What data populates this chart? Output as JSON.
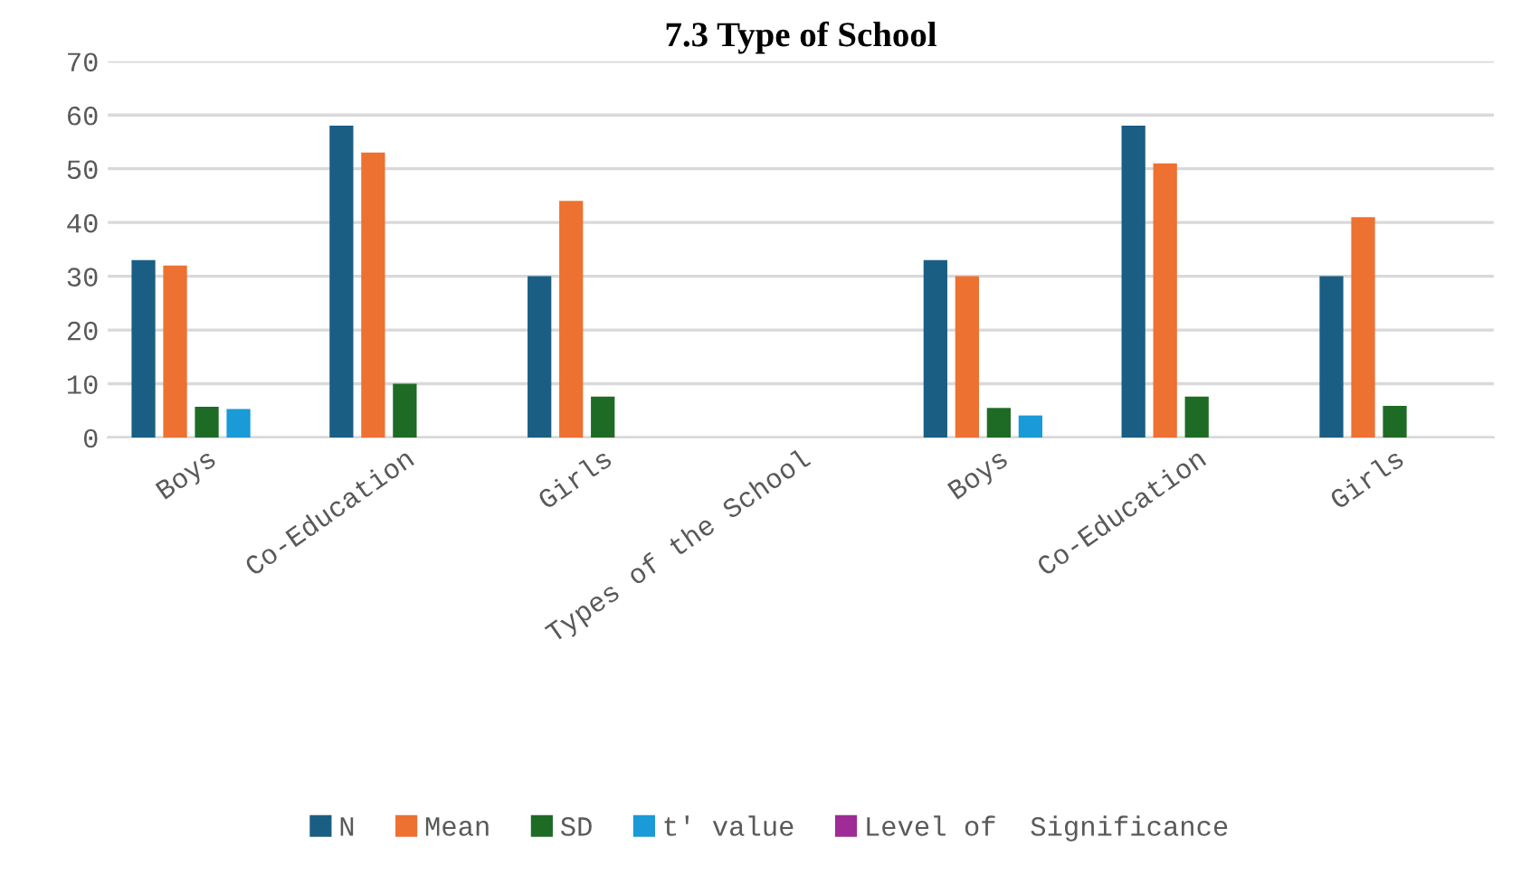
{
  "chart_data": {
    "type": "bar",
    "title": "7.3 Type of School",
    "categories": [
      "Boys",
      "Co-Education",
      "Girls",
      "Types of the School",
      "Boys",
      "Co-Education",
      "Girls"
    ],
    "series": [
      {
        "name": "N",
        "color": "#1b5e84",
        "values": [
          33,
          58,
          30,
          null,
          33,
          58,
          30
        ]
      },
      {
        "name": "Mean",
        "color": "#ed7131",
        "values": [
          32,
          53,
          44,
          null,
          30,
          51,
          41
        ]
      },
      {
        "name": "SD",
        "color": "#1e6b25",
        "values": [
          5.7,
          10,
          7.6,
          null,
          5.5,
          7.6,
          5.9
        ]
      },
      {
        "name": "t' value",
        "color": "#1a9ad6",
        "values": [
          5.3,
          null,
          null,
          null,
          4.1,
          null,
          null
        ]
      },
      {
        "name": "Level of  Significance",
        "color": "#9e2b96",
        "values": [
          null,
          null,
          null,
          null,
          null,
          null,
          null
        ]
      }
    ],
    "ylim": [
      0,
      70
    ],
    "yticks": [
      0,
      10,
      20,
      30,
      40,
      50,
      60,
      70
    ],
    "grid": "y",
    "legend": "bottom"
  }
}
